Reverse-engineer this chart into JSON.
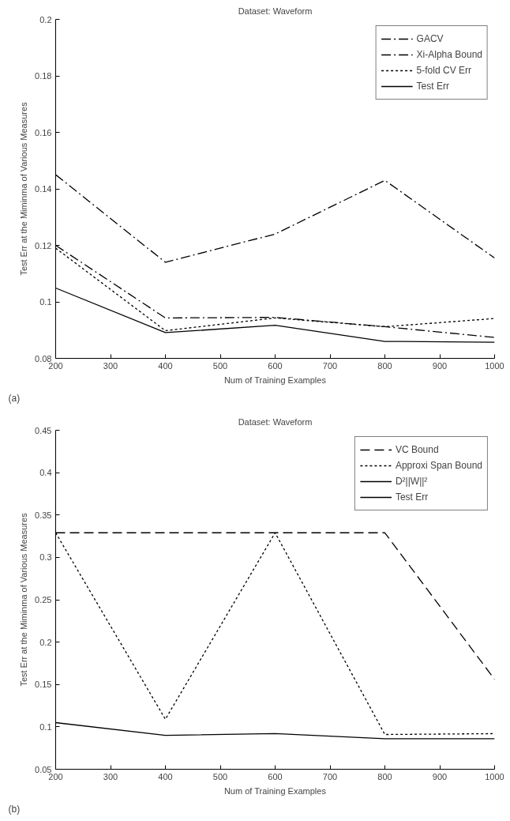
{
  "chart_data": [
    {
      "type": "line",
      "title": "Dataset: Waveform",
      "xlabel": "Num of Training Examples",
      "ylabel": "Test Err at the Miminma of Various Measures",
      "annotations": [
        "(a)"
      ],
      "x": [
        200,
        400,
        600,
        800,
        1000
      ],
      "xlim": [
        200,
        1000
      ],
      "xticks": [
        200,
        300,
        400,
        500,
        600,
        700,
        800,
        900,
        1000
      ],
      "ylim": [
        0.08,
        0.2
      ],
      "yticks": [
        0.08,
        0.1,
        0.12,
        0.14,
        0.16,
        0.18,
        0.2
      ],
      "grid": false,
      "legend": "top right",
      "series": [
        {
          "name": "GACV",
          "color": "#000000",
          "line_style": "dashdot",
          "values": [
            0.145,
            0.114,
            0.124,
            0.143,
            0.1155
          ]
        },
        {
          "name": "Xi-Alpha Bound",
          "color": "#000000",
          "line_style": "dashdot",
          "values": [
            0.12,
            0.0943,
            0.0945,
            0.0912,
            0.0874
          ]
        },
        {
          "name": "5-fold CV Err",
          "color": "#000000",
          "line_style": "dotted",
          "values": [
            0.119,
            0.0898,
            0.0943,
            0.0912,
            0.0941
          ]
        },
        {
          "name": "Test Err",
          "color": "#000000",
          "line_style": "solid",
          "values": [
            0.1049,
            0.0891,
            0.0917,
            0.086,
            0.0857
          ]
        }
      ]
    },
    {
      "type": "line",
      "title": "Dataset: Waveform",
      "xlabel": "Num of Training Examples",
      "ylabel": "Test Err at the Miminma of Various Measures",
      "annotations": [
        "(b)"
      ],
      "x": [
        200,
        400,
        600,
        800,
        1000
      ],
      "xlim": [
        200,
        1000
      ],
      "xticks": [
        200,
        300,
        400,
        500,
        600,
        700,
        800,
        900,
        1000
      ],
      "ylim": [
        0.05,
        0.45
      ],
      "yticks": [
        0.05,
        0.1,
        0.15,
        0.2,
        0.25,
        0.3,
        0.35,
        0.4,
        0.45
      ],
      "grid": false,
      "legend": "top right",
      "series": [
        {
          "name": "VC Bound",
          "color": "#000000",
          "line_style": "dashed",
          "values": [
            0.329,
            0.329,
            0.329,
            0.329,
            0.156
          ]
        },
        {
          "name": "Approxi Span Bound",
          "color": "#000000",
          "line_style": "dotted",
          "values": [
            0.329,
            0.109,
            0.329,
            0.091,
            0.092
          ]
        },
        {
          "name": "D²||W||²",
          "color": "#000000",
          "line_style": "solid",
          "values": [
            null,
            null,
            null,
            null,
            null
          ]
        },
        {
          "name": "Test Err",
          "color": "#000000",
          "line_style": "solid",
          "values": [
            0.105,
            0.09,
            0.092,
            0.086,
            0.086
          ]
        }
      ]
    }
  ]
}
